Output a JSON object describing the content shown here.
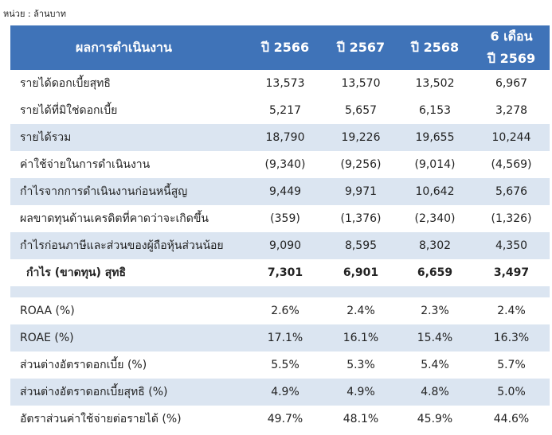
{
  "unit": "หน่วย : ล้านบาท",
  "header": {
    "columns": [
      "ผลการดำเนินงาน",
      "ปี 2566",
      "ปี 2567",
      "ปี 2568",
      [
        "6 เดือน",
        "ปี 2569"
      ]
    ]
  },
  "table": {
    "rows": [
      [
        "รายได้ดอกเบี้ยสุทธิ",
        "13,573",
        "13,570",
        "13,502",
        "6,967"
      ],
      [
        "รายได้ที่มิใช่ดอกเบี้ย",
        "5,217",
        "5,657",
        "6,153",
        "3,278"
      ],
      [
        "รายได้รวม",
        "18,790",
        "19,226",
        "19,655",
        "10,244"
      ],
      [
        "ค่าใช้จ่ายในการดำเนินงาน",
        "(9,340)",
        "(9,256)",
        "(9,014)",
        "(4,569)"
      ],
      [
        "กำไรจากการดำเนินงานก่อนหนี้สูญ",
        "9,449",
        "9,971",
        "10,642",
        "5,676"
      ],
      [
        "ผลขาดทุนด้านเครดิตที่คาดว่าจะเกิดขึ้น",
        "(359)",
        "(1,376)",
        "(2,340)",
        "(1,326)"
      ],
      [
        "กำไรก่อนภาษีและส่วนของผู้ถือหุ้นส่วนน้อย",
        "9,090",
        "8,595",
        "8,302",
        "4,350"
      ],
      [
        "กำไร (ขาดทุน) สุทธิ",
        "7,301",
        "6,901",
        "6,659",
        "3,497"
      ]
    ]
  },
  "ratios": {
    "rows": [
      [
        "ROAA (%)",
        "2.6%",
        "2.4%",
        "2.3%",
        "2.4%"
      ],
      [
        "ROAE (%)",
        "17.1%",
        "16.1%",
        "15.4%",
        "16.3%"
      ],
      [
        "ส่วนต่างอัตราดอกเบี้ย (%)",
        "5.5%",
        "5.3%",
        "5.4%",
        "5.7%"
      ],
      [
        "ส่วนต่างอัตราดอกเบี้ยสุทธิ (%)",
        "4.9%",
        "4.9%",
        "4.8%",
        "5.0%"
      ],
      [
        "อัตราส่วนค่าใช้จ่ายต่อรายได้ (%)",
        "49.7%",
        "48.1%",
        "45.9%",
        "44.6%"
      ]
    ]
  }
}
